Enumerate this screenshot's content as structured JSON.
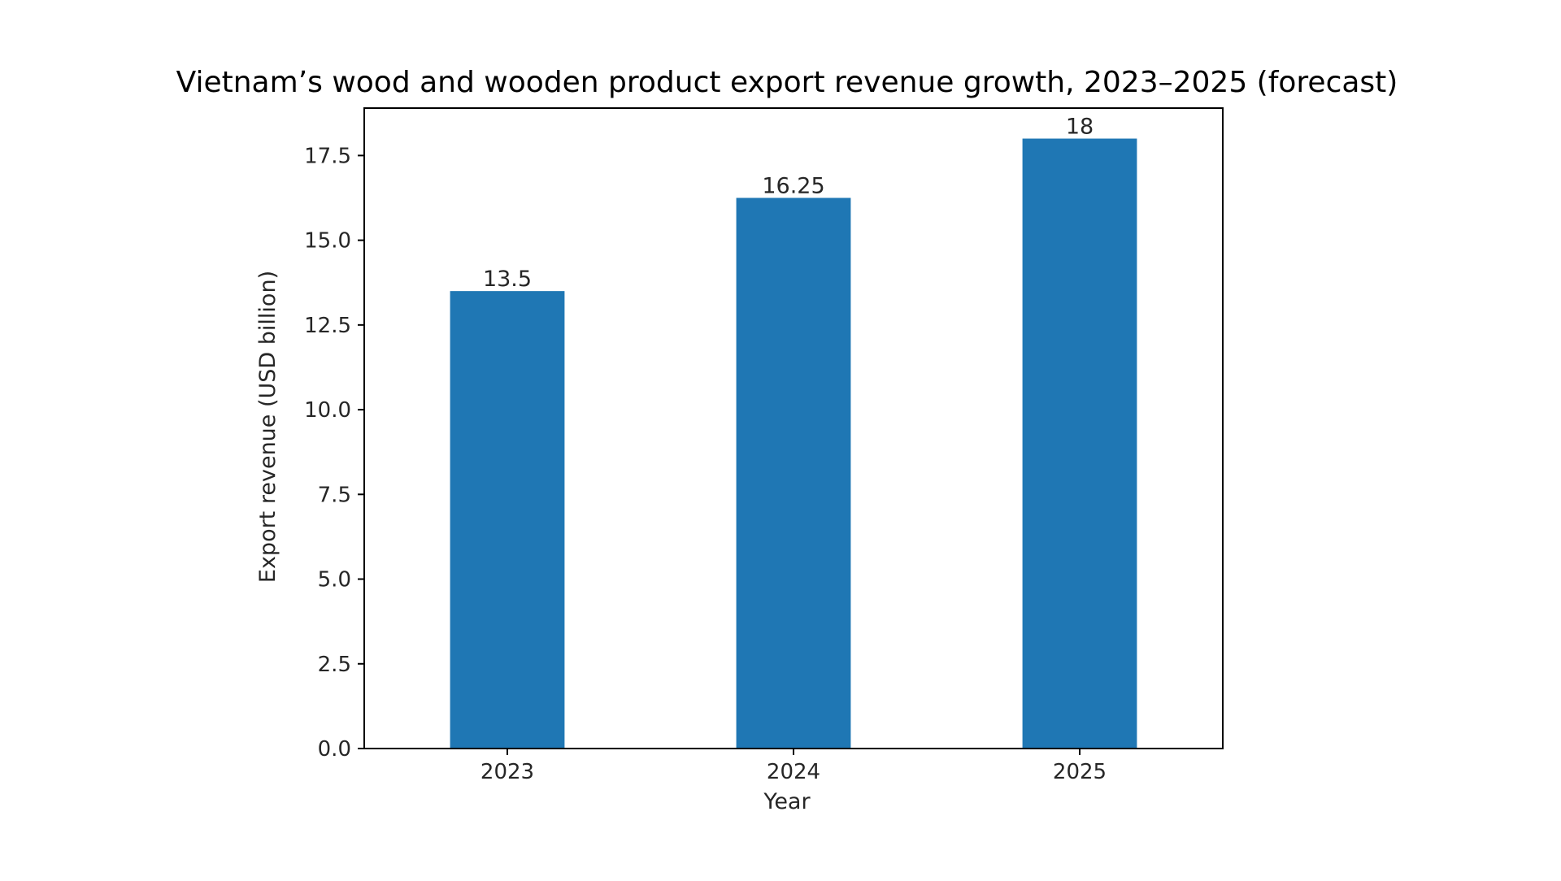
{
  "chart_data": {
    "type": "bar",
    "title": "Vietnam’s wood and wooden product export revenue growth, 2023–2025 (forecast)",
    "xlabel": "Year",
    "ylabel": "Export revenue (USD billion)",
    "categories": [
      "2023",
      "2024",
      "2025"
    ],
    "values": [
      13.5,
      16.25,
      18
    ],
    "data_labels": [
      "13.5",
      "16.25",
      "18"
    ],
    "ylim": [
      0,
      18.9
    ],
    "yticks": [
      0.0,
      2.5,
      5.0,
      7.5,
      10.0,
      12.5,
      15.0,
      17.5
    ],
    "ytick_labels": [
      "0.0",
      "2.5",
      "5.0",
      "7.5",
      "10.0",
      "12.5",
      "15.0",
      "17.5"
    ],
    "grid": false,
    "legend": "none",
    "bar_color": "#1f77b4"
  }
}
